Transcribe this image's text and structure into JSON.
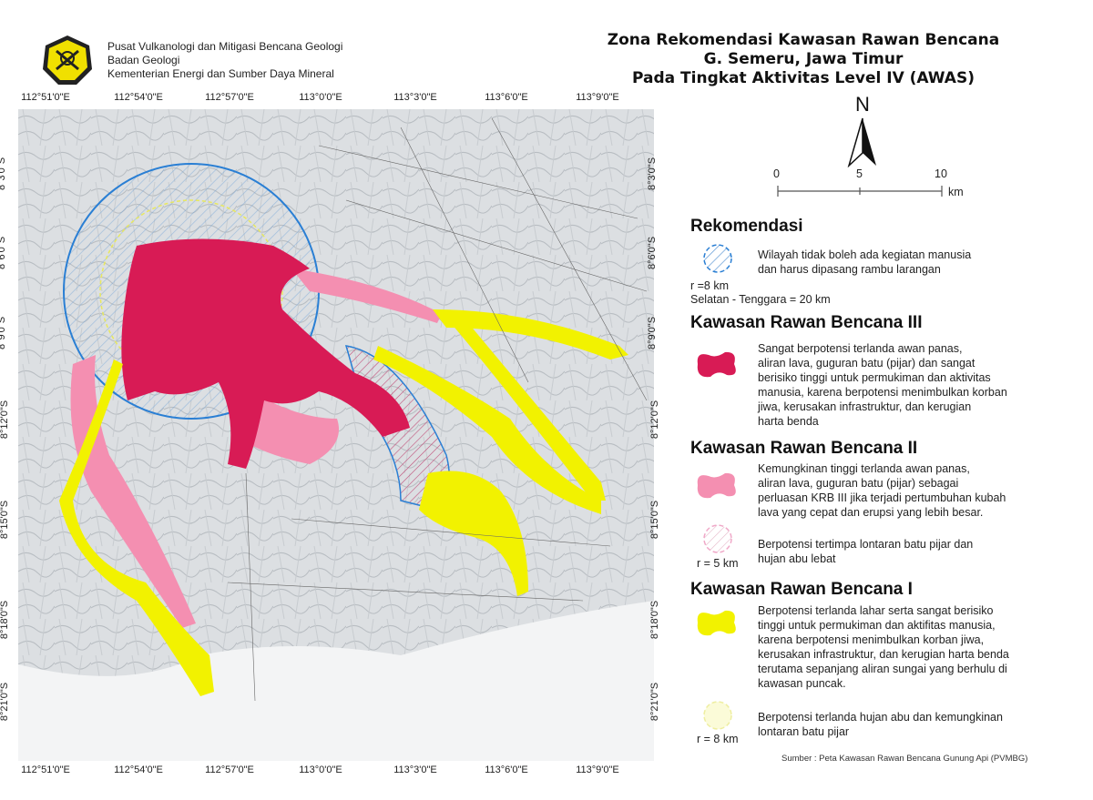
{
  "header": {
    "org_lines": [
      "Pusat Vulkanologi dan Mitigasi Bencana Geologi",
      "Badan Geologi",
      "Kementerian Energi dan Sumber Daya Mineral"
    ],
    "title_lines": [
      "Zona Rekomendasi Kawasan Rawan Bencana",
      "G. Semeru, Jawa Timur",
      "Pada Tingkat Aktivitas Level IV  (AWAS)"
    ]
  },
  "axes": {
    "longitudes": [
      "112°51'0\"E",
      "112°54'0\"E",
      "112°57'0\"E",
      "113°0'0\"E",
      "113°3'0\"E",
      "113°6'0\"E",
      "113°9'0\"E"
    ],
    "latitudes": [
      "8°3'0\"S",
      "8°6'0\"S",
      "8°9'0\"S",
      "8°12'0\"S",
      "8°15'0\"S",
      "8°18'0\"S",
      "8°21'0\"S"
    ]
  },
  "north_arrow": {
    "label": "N"
  },
  "scale": {
    "ticks": [
      "0",
      "5",
      "10"
    ],
    "unit": "km"
  },
  "legend": {
    "rekomendasi": {
      "heading": "Rekomendasi",
      "text": [
        "Wilayah tidak boleh ada kegiatan manusia",
        "dan harus dipasang rambu larangan"
      ],
      "radius": "r =8  km",
      "extra": "Selatan - Tenggara = 20  km"
    },
    "krb3": {
      "heading": "Kawasan Rawan Bencana III",
      "text": [
        "Sangat berpotensi terlanda awan panas,",
        "aliran lava, guguran batu (pijar) dan sangat",
        "berisiko tinggi untuk permukiman dan aktivitas",
        "manusia, karena berpotensi menimbulkan korban",
        "jiwa, kerusakan infrastruktur, dan kerugian",
        "harta benda"
      ]
    },
    "krb2": {
      "heading": "Kawasan Rawan Bencana II",
      "text": [
        "Kemungkinan tinggi terlanda awan panas,",
        "aliran lava, guguran batu (pijar) sebagai",
        "perluasan KRB III jika terjadi pertumbuhan kubah",
        "lava yang cepat dan erupsi yang lebih besar."
      ],
      "circle_text": [
        "Berpotensi tertimpa lontaran batu pijar dan",
        "hujan abu lebat"
      ],
      "radius": "r = 5 km"
    },
    "krb1": {
      "heading": "Kawasan Rawan Bencana I",
      "text": [
        "Berpotensi terlanda lahar serta sangat berisiko",
        "tinggi untuk permukiman dan aktifitas manusia,",
        "karena berpotensi menimbulkan korban jiwa,",
        "kerusakan infrastruktur, dan kerugian harta benda",
        "terutama sepanjang aliran sungai yang berhulu di",
        "kawasan puncak."
      ],
      "circle_text": [
        "Berpotensi terlanda hujan abu dan kemungkinan",
        "lontaran batu pijar"
      ],
      "radius": "r = 8 km"
    }
  },
  "source": "Sumber : Peta Kawasan Rawan Bencana Gunung Api (PVMBG)",
  "colors": {
    "krb3": "#d81b55",
    "krb2": "#f48fb1",
    "krb1": "#f2f200",
    "exclusion": "#2a7fd4"
  }
}
